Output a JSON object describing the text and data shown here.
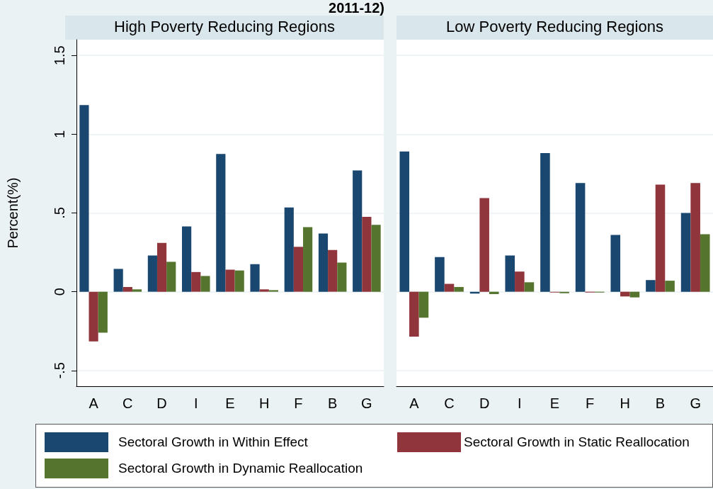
{
  "chart_data": [
    {
      "type": "bar",
      "title": "High Poverty Reducing Regions",
      "ylabel": "Percent(%)",
      "annotations": [
        "2011-12)"
      ],
      "categories": [
        "A",
        "C",
        "D",
        "I",
        "E",
        "H",
        "F",
        "B",
        "G"
      ],
      "series": [
        {
          "name": "Sectoral Growth in Within Effect",
          "color": "#1a476f",
          "values": [
            1.185,
            0.145,
            0.23,
            0.415,
            0.875,
            0.175,
            0.535,
            0.37,
            0.77
          ]
        },
        {
          "name": "Sectoral Growth in Static Reallocation",
          "color": "#90353b",
          "values": [
            -0.315,
            0.03,
            0.31,
            0.125,
            0.14,
            0.015,
            0.285,
            0.265,
            0.475
          ]
        },
        {
          "name": "Sectoral Growth in Dynamic Reallocation",
          "color": "#55752f",
          "values": [
            -0.26,
            0.015,
            0.19,
            0.1,
            0.135,
            0.01,
            0.41,
            0.185,
            0.425
          ]
        }
      ],
      "ylim": [
        -0.6,
        1.6
      ],
      "yticks": [
        {
          "value": -0.5,
          "label": "-.5"
        },
        0,
        {
          "value": 0.5,
          "label": ".5"
        },
        1,
        1.5
      ],
      "grid": "y",
      "legend": "bottom"
    },
    {
      "type": "bar",
      "title": "Low Poverty Reducing Regions",
      "categories": [
        "A",
        "C",
        "D",
        "I",
        "E",
        "F",
        "H",
        "B",
        "G"
      ],
      "series": [
        {
          "color": "#1a476f",
          "values": [
            0.89,
            0.22,
            -0.012,
            0.23,
            0.88,
            0.69,
            0.36,
            0.074,
            0.5
          ]
        },
        {
          "color": "#90353b",
          "values": [
            -0.285,
            0.05,
            0.595,
            0.128,
            -0.005,
            -0.005,
            -0.03,
            0.68,
            0.69
          ]
        },
        {
          "color": "#55752f",
          "values": [
            -0.165,
            0.03,
            -0.015,
            0.06,
            -0.01,
            -0.005,
            -0.036,
            0.07,
            0.365
          ]
        }
      ],
      "ylim": [
        -0.6,
        1.6
      ],
      "yticks": [
        -0.5,
        0,
        0.5,
        1,
        1.5
      ],
      "grid": "y",
      "tick_labels": "x"
    }
  ]
}
